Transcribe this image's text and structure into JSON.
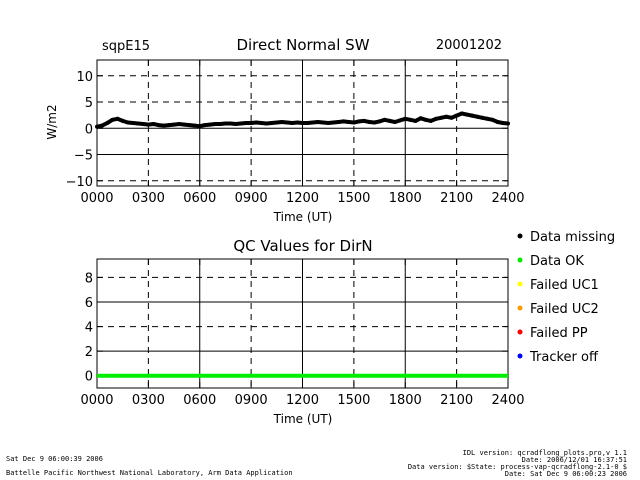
{
  "header": {
    "site": "sqpE15",
    "title": "Direct Normal SW",
    "date": "20001202"
  },
  "chart_data": [
    {
      "type": "scatter",
      "title": "Direct Normal SW",
      "xlabel": "Time (UT)",
      "ylabel": "W/m2",
      "xlim": [
        0,
        2400
      ],
      "ylim": [
        -11,
        13
      ],
      "x_ticks": [
        "0000",
        "0300",
        "0600",
        "0900",
        "1200",
        "1500",
        "1800",
        "2100",
        "2400"
      ],
      "y_ticks": [
        {
          "value": 10,
          "label": "10"
        },
        {
          "value": 5,
          "label": "5"
        },
        {
          "value": 0,
          "label": "0"
        },
        {
          "value": -5,
          "label": "−5"
        },
        {
          "value": -10,
          "label": "−10"
        }
      ],
      "grid": "dashed",
      "series": [
        {
          "color": "#000000",
          "x": [
            0,
            30,
            60,
            90,
            120,
            150,
            180,
            210,
            240,
            270,
            300,
            330,
            360,
            390,
            420,
            450,
            480,
            510,
            540,
            570,
            600,
            630,
            660,
            690,
            720,
            750,
            780,
            810,
            840,
            870,
            900,
            930,
            960,
            990,
            1020,
            1050,
            1080,
            1110,
            1140,
            1170,
            1200,
            1230,
            1260,
            1290,
            1320,
            1350,
            1380,
            1410,
            1440,
            1470,
            1500,
            1530,
            1560,
            1590,
            1620,
            1650,
            1680,
            1710,
            1740,
            1770,
            1800,
            1830,
            1860,
            1890,
            1920,
            1950,
            1980,
            2010,
            2040,
            2070,
            2100,
            2130,
            2160,
            2190,
            2220,
            2250,
            2280,
            2310,
            2340,
            2370,
            2400
          ],
          "y": [
            0.3,
            0.5,
            1.0,
            1.6,
            1.8,
            1.4,
            1.1,
            1.0,
            0.9,
            0.8,
            0.7,
            0.8,
            0.6,
            0.5,
            0.6,
            0.7,
            0.8,
            0.7,
            0.6,
            0.5,
            0.4,
            0.6,
            0.7,
            0.8,
            0.8,
            0.9,
            0.9,
            0.8,
            0.9,
            1.0,
            1.0,
            1.1,
            1.0,
            0.9,
            1.0,
            1.1,
            1.2,
            1.1,
            1.0,
            1.1,
            1.0,
            1.0,
            1.1,
            1.2,
            1.1,
            1.0,
            1.1,
            1.2,
            1.3,
            1.2,
            1.1,
            1.3,
            1.4,
            1.2,
            1.1,
            1.3,
            1.6,
            1.4,
            1.2,
            1.5,
            1.8,
            1.6,
            1.4,
            1.9,
            1.6,
            1.4,
            1.8,
            2.0,
            2.2,
            2.0,
            2.4,
            2.8,
            2.6,
            2.4,
            2.2,
            2.0,
            1.8,
            1.6,
            1.2,
            1.0,
            0.9
          ]
        }
      ]
    },
    {
      "type": "scatter",
      "title": "QC Values for DirN",
      "xlabel": "Time (UT)",
      "ylabel": "",
      "xlim": [
        0,
        2400
      ],
      "ylim": [
        -1,
        9.5
      ],
      "x_ticks": [
        "0000",
        "0300",
        "0600",
        "0900",
        "1200",
        "1500",
        "1800",
        "2100",
        "2400"
      ],
      "y_ticks": [
        {
          "value": 8,
          "label": "8"
        },
        {
          "value": 6,
          "label": "6"
        },
        {
          "value": 4,
          "label": "4"
        },
        {
          "value": 2,
          "label": "2"
        },
        {
          "value": 0,
          "label": "0"
        }
      ],
      "grid": "dashed",
      "series": [
        {
          "color": "#00ee00",
          "x": [
            0,
            2400
          ],
          "y": [
            0,
            0
          ]
        }
      ]
    }
  ],
  "legend": {
    "placement": "right",
    "items": [
      {
        "label": "Data missing",
        "color": "#000000"
      },
      {
        "label": "Data OK",
        "color": "#00ee00"
      },
      {
        "label": "Failed UC1",
        "color": "#ffff00"
      },
      {
        "label": "Failed UC2",
        "color": "#ff9900"
      },
      {
        "label": "Failed PP",
        "color": "#ff0000"
      },
      {
        "label": "Tracker off",
        "color": "#0000ff"
      }
    ]
  },
  "footer": {
    "left_line1": "Sat Dec  9 06:00:39 2006",
    "left_line2": "Battelle Pacific Northwest National Laboratory, Arm Data Application",
    "right_line1": "IDL version: qcradflong_plots.pro,v 1.1",
    "right_line2": "Date: 2006/12/01 16:37:51",
    "right_line3": "Data version: $State: process-vap-qcradflong-2.1-0 $",
    "right_line4": "Date: Sat Dec  9 06:00:23 2006"
  }
}
